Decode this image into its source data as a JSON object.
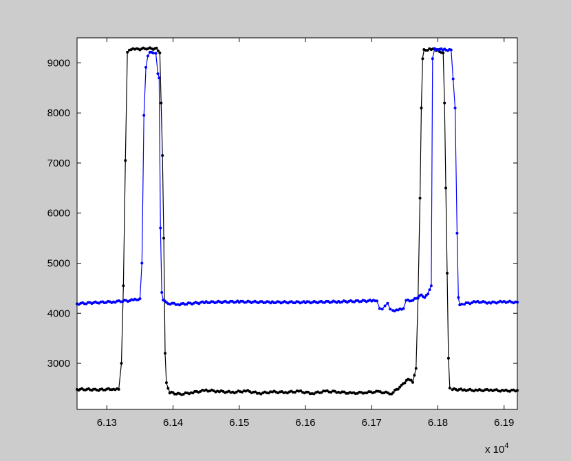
{
  "chart_data": {
    "type": "line",
    "title": "",
    "xlabel": "",
    "ylabel": "",
    "x_exponent_label": "x 10",
    "x_exponent_power": "4",
    "xlim": [
      6.1255,
      6.192
    ],
    "ylim": [
      2080,
      9500
    ],
    "x_ticks": [
      6.13,
      6.14,
      6.15,
      6.16,
      6.17,
      6.18,
      6.19
    ],
    "x_tick_labels": [
      "6.13",
      "6.14",
      "6.15",
      "6.16",
      "6.17",
      "6.18",
      "6.19"
    ],
    "y_ticks": [
      3000,
      4000,
      5000,
      6000,
      7000,
      8000,
      9000
    ],
    "y_tick_labels": [
      "3000",
      "4000",
      "5000",
      "6000",
      "7000",
      "8000",
      "9000"
    ],
    "grid": false,
    "legend": "none",
    "series": [
      {
        "color": "#000000",
        "marker": "dot",
        "x": [
          6.1255,
          6.127,
          6.1285,
          6.13,
          6.131,
          6.1318,
          6.1322,
          6.1325,
          6.1328,
          6.1331,
          6.1334,
          6.1345,
          6.136,
          6.1375,
          6.138,
          6.1382,
          6.1384,
          6.1386,
          6.1388,
          6.139,
          6.1395,
          6.141,
          6.143,
          6.145,
          6.147,
          6.149,
          6.151,
          6.153,
          6.155,
          6.157,
          6.159,
          6.161,
          6.163,
          6.165,
          6.167,
          6.169,
          6.171,
          6.173,
          6.1745,
          6.1755,
          6.1762,
          6.1767,
          6.177,
          6.1773,
          6.1775,
          6.1777,
          6.1779,
          6.179,
          6.18,
          6.1808,
          6.181,
          6.1812,
          6.1814,
          6.1816,
          6.1818,
          6.1822,
          6.184,
          6.186,
          6.188,
          6.19,
          6.192
        ],
        "y": [
          2480,
          2480,
          2470,
          2480,
          2490,
          2480,
          3000,
          4550,
          7050,
          9200,
          9270,
          9270,
          9290,
          9280,
          9200,
          8200,
          7150,
          5500,
          3200,
          2600,
          2420,
          2380,
          2420,
          2460,
          2440,
          2420,
          2450,
          2400,
          2430,
          2420,
          2440,
          2400,
          2440,
          2430,
          2400,
          2420,
          2430,
          2400,
          2550,
          2700,
          2620,
          2900,
          4300,
          6300,
          8100,
          9100,
          9250,
          9280,
          9250,
          9200,
          8200,
          6500,
          4800,
          3100,
          2500,
          2480,
          2470,
          2460,
          2470,
          2450,
          2460
        ]
      },
      {
        "color": "#0000ff",
        "marker": "dot",
        "x": [
          6.1255,
          6.128,
          6.131,
          6.134,
          6.135,
          6.1353,
          6.1356,
          6.1359,
          6.1362,
          6.1365,
          6.137,
          6.1374,
          6.1377,
          6.1379,
          6.1381,
          6.1383,
          6.1385,
          6.139,
          6.141,
          6.145,
          6.15,
          6.155,
          6.16,
          6.165,
          6.17,
          6.1708,
          6.1712,
          6.1716,
          6.172,
          6.1724,
          6.1728,
          6.1732,
          6.174,
          6.1748,
          6.1752,
          6.176,
          6.177,
          6.1775,
          6.178,
          6.1785,
          6.179,
          6.1792,
          6.1795,
          6.18,
          6.181,
          6.182,
          6.1826,
          6.1829,
          6.1831,
          6.1833,
          6.1836,
          6.184,
          6.186,
          6.188,
          6.19,
          6.192
        ],
        "y": [
          4190,
          4210,
          4230,
          4260,
          4290,
          5000,
          7950,
          8900,
          9150,
          9200,
          9210,
          9190,
          8800,
          8700,
          5700,
          4400,
          4280,
          4200,
          4180,
          4220,
          4230,
          4220,
          4220,
          4230,
          4250,
          4240,
          4100,
          4080,
          4150,
          4200,
          4080,
          4060,
          4060,
          4100,
          4250,
          4260,
          4300,
          4380,
          4300,
          4400,
          4550,
          9100,
          9270,
          9270,
          9260,
          9260,
          8100,
          5600,
          4300,
          4180,
          4170,
          4190,
          4230,
          4210,
          4230,
          4220
        ]
      }
    ]
  }
}
